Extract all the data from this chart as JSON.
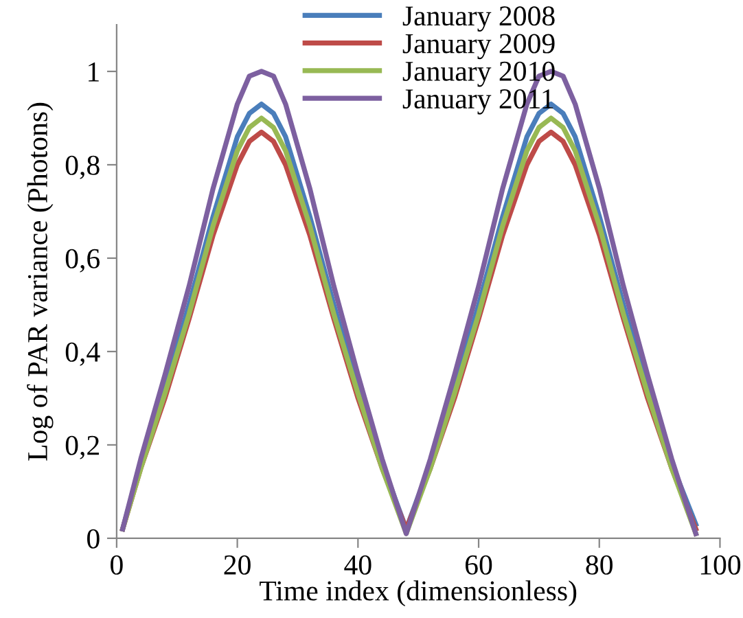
{
  "chart_data": {
    "type": "line",
    "xlabel": "Time index (dimensionless)",
    "ylabel": "Log of PAR variance (Photons)",
    "x": [
      1,
      4,
      8,
      12,
      16,
      20,
      22,
      24,
      26,
      28,
      32,
      36,
      40,
      44,
      48,
      52,
      56,
      60,
      64,
      68,
      70,
      72,
      74,
      76,
      80,
      84,
      88,
      92,
      96
    ],
    "series": [
      {
        "name": "January 2008",
        "color": "#4a7ebb",
        "values": [
          0.02,
          0.16,
          0.32,
          0.5,
          0.69,
          0.86,
          0.91,
          0.93,
          0.91,
          0.86,
          0.69,
          0.5,
          0.32,
          0.16,
          0.02,
          0.16,
          0.32,
          0.5,
          0.69,
          0.86,
          0.91,
          0.93,
          0.91,
          0.86,
          0.69,
          0.5,
          0.32,
          0.16,
          0.03
        ]
      },
      {
        "name": "January 2009",
        "color": "#be4b48",
        "values": [
          0.02,
          0.15,
          0.3,
          0.47,
          0.65,
          0.8,
          0.85,
          0.87,
          0.85,
          0.8,
          0.65,
          0.47,
          0.3,
          0.15,
          0.02,
          0.15,
          0.3,
          0.47,
          0.65,
          0.8,
          0.85,
          0.87,
          0.85,
          0.8,
          0.65,
          0.47,
          0.3,
          0.15,
          0.02
        ]
      },
      {
        "name": "January 2010",
        "color": "#98b954",
        "values": [
          0.02,
          0.15,
          0.31,
          0.48,
          0.67,
          0.83,
          0.88,
          0.9,
          0.88,
          0.83,
          0.67,
          0.48,
          0.31,
          0.15,
          0.01,
          0.15,
          0.31,
          0.48,
          0.67,
          0.83,
          0.88,
          0.9,
          0.88,
          0.83,
          0.67,
          0.48,
          0.31,
          0.15,
          0.01
        ]
      },
      {
        "name": "January 2011",
        "color": "#7d60a0",
        "values": [
          0.02,
          0.17,
          0.35,
          0.54,
          0.75,
          0.93,
          0.99,
          1.0,
          0.99,
          0.93,
          0.75,
          0.54,
          0.35,
          0.17,
          0.01,
          0.17,
          0.35,
          0.54,
          0.75,
          0.93,
          0.99,
          1.0,
          0.99,
          0.93,
          0.75,
          0.54,
          0.35,
          0.17,
          0.01
        ]
      }
    ],
    "xlim": [
      0,
      100
    ],
    "xticks": [
      0,
      20,
      40,
      60,
      80,
      100
    ],
    "ylim": [
      0,
      1.1
    ],
    "yticks": [
      0,
      {
        "value": 0.2,
        "label": "0,2"
      },
      {
        "value": 0.4,
        "label": "0,4"
      },
      {
        "value": 0.6,
        "label": "0,6"
      },
      {
        "value": 0.8,
        "label": "0,8"
      },
      1
    ],
    "grid": false,
    "legend": "top",
    "marker": "none",
    "line_style": "solid"
  }
}
